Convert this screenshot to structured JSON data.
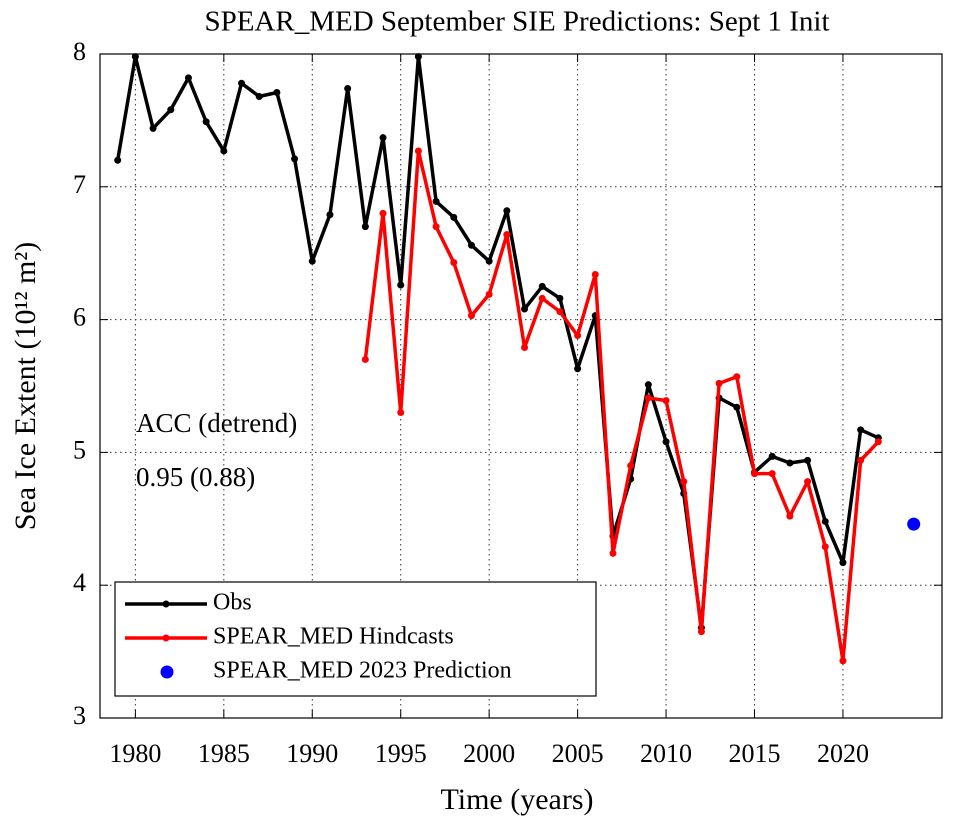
{
  "chart_data": {
    "type": "line",
    "title": "SPEAR_MED September SIE Predictions: Sept 1 Init",
    "x_label": "Time (years)",
    "y_label": "Sea Ice Extent (10¹² m²)",
    "annotations": [
      "ACC (detrend)",
      "0.95 (0.88)"
    ],
    "xlim": [
      1978,
      2025.6
    ],
    "xticks": [
      1980,
      1985,
      1990,
      1995,
      2000,
      2005,
      2010,
      2015,
      2020
    ],
    "ylim": [
      3,
      8
    ],
    "yticks": [
      3,
      4,
      5,
      6,
      7,
      8
    ],
    "grid": true,
    "legend": "lower left",
    "series": [
      {
        "name": "Obs",
        "color": "#000000",
        "mode": "line",
        "x": [
          1979,
          1980,
          1981,
          1982,
          1983,
          1984,
          1985,
          1986,
          1987,
          1988,
          1989,
          1990,
          1991,
          1992,
          1993,
          1994,
          1995,
          1996,
          1997,
          1998,
          1999,
          2000,
          2001,
          2002,
          2003,
          2004,
          2005,
          2006,
          2007,
          2008,
          2009,
          2010,
          2011,
          2012,
          2013,
          2014,
          2015,
          2016,
          2017,
          2018,
          2019,
          2020,
          2021,
          2022
        ],
        "values": [
          7.2,
          7.98,
          7.44,
          7.58,
          7.82,
          7.49,
          7.27,
          7.78,
          7.68,
          7.71,
          7.21,
          6.44,
          6.79,
          7.74,
          6.7,
          7.37,
          6.26,
          7.98,
          6.89,
          6.77,
          6.56,
          6.44,
          6.82,
          6.08,
          6.25,
          6.16,
          5.63,
          6.03,
          4.37,
          4.8,
          5.51,
          5.08,
          4.69,
          3.68,
          5.41,
          5.34,
          4.85,
          4.97,
          4.92,
          4.94,
          4.48,
          4.17,
          5.17,
          5.11
        ]
      },
      {
        "name": "SPEAR_MED Hindcasts",
        "color": "#ff0000",
        "mode": "line",
        "x": [
          1993,
          1994,
          1995,
          1996,
          1997,
          1998,
          1999,
          2000,
          2001,
          2002,
          2003,
          2004,
          2005,
          2006,
          2007,
          2008,
          2009,
          2010,
          2011,
          2012,
          2013,
          2014,
          2015,
          2016,
          2017,
          2018,
          2019,
          2020,
          2021,
          2022
        ],
        "values": [
          5.7,
          6.8,
          5.3,
          7.27,
          6.7,
          6.43,
          6.03,
          6.19,
          6.64,
          5.79,
          6.16,
          6.06,
          5.88,
          6.34,
          4.24,
          4.9,
          5.41,
          5.39,
          4.78,
          3.65,
          5.52,
          5.57,
          4.84,
          4.84,
          4.52,
          4.78,
          4.29,
          3.43,
          4.94,
          5.08
        ]
      },
      {
        "name": "SPEAR_MED 2023 Prediction",
        "color": "#0000ff",
        "mode": "scatter",
        "x": [
          2024
        ],
        "values": [
          4.46
        ]
      }
    ]
  }
}
